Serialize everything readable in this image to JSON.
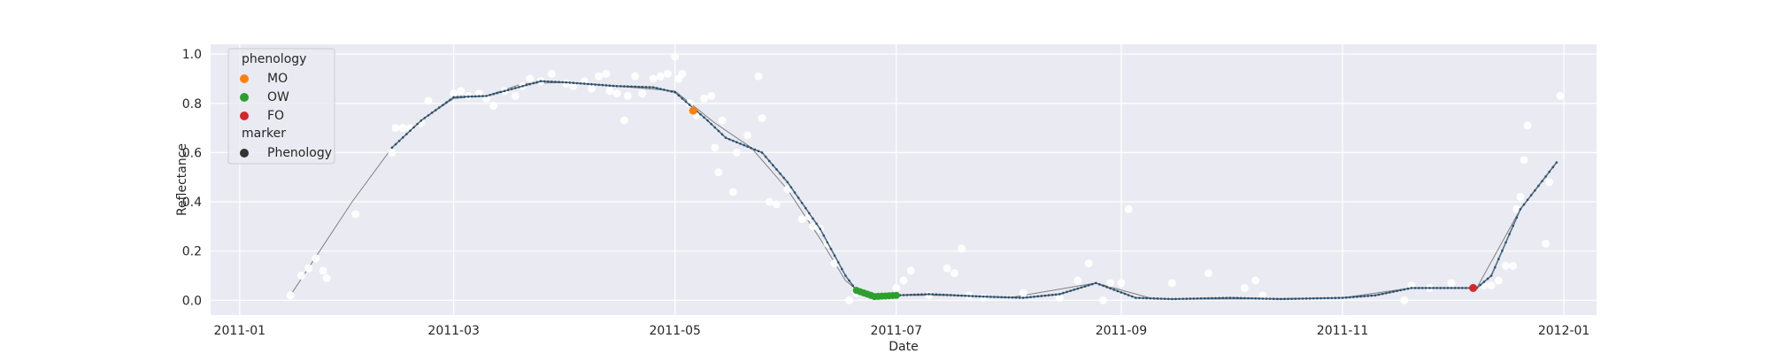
{
  "chart_data": {
    "type": "scatter",
    "xlabel": "Date",
    "ylabel": "Reflectance",
    "x_type": "date",
    "xlim": [
      "2010-12-24",
      "2012-01-10"
    ],
    "ylim": [
      -0.06,
      1.04
    ],
    "grid": true,
    "x_ticks": [
      {
        "value": "2011-01-01",
        "label": "2011-01"
      },
      {
        "value": "2011-03-01",
        "label": "2011-03"
      },
      {
        "value": "2011-05-01",
        "label": "2011-05"
      },
      {
        "value": "2011-07-01",
        "label": "2011-07"
      },
      {
        "value": "2011-09-01",
        "label": "2011-09"
      },
      {
        "value": "2011-11-01",
        "label": "2011-11"
      },
      {
        "value": "2012-01-01",
        "label": "2012-01"
      }
    ],
    "y_ticks": [
      {
        "value": 0.0,
        "label": "0.0"
      },
      {
        "value": 0.2,
        "label": "0.2"
      },
      {
        "value": 0.4,
        "label": "0.4"
      },
      {
        "value": 0.6,
        "label": "0.6"
      },
      {
        "value": 0.8,
        "label": "0.8"
      },
      {
        "value": 1.0,
        "label": "1.0"
      }
    ],
    "legend": {
      "placement": "top-left",
      "title_1": "phenology",
      "title_2": "marker",
      "entries": [
        {
          "label": "MO",
          "color": "#ff7f0e"
        },
        {
          "label": "OW",
          "color": "#2ca02c"
        },
        {
          "label": "FO",
          "color": "#d62728"
        }
      ],
      "marker_entry": {
        "label": "Phenology",
        "color": "#333333"
      }
    },
    "colors": {
      "background": "#eaeaf2",
      "grid": "#ffffff",
      "raw": "#ffffff",
      "fitted_line": "#808080",
      "smoothed": "#4c6f8a",
      "MO": "#ff7f0e",
      "OW": "#2ca02c",
      "FO": "#d62728"
    },
    "fitted_curve": [
      [
        "2011-01-15",
        0.02
      ],
      [
        "2011-02-01",
        0.4
      ],
      [
        "2011-02-12",
        0.62
      ],
      [
        "2011-02-20",
        0.73
      ],
      [
        "2011-03-01",
        0.82
      ],
      [
        "2011-03-10",
        0.83
      ],
      [
        "2011-03-20",
        0.88
      ],
      [
        "2011-04-01",
        0.885
      ],
      [
        "2011-04-15",
        0.87
      ],
      [
        "2011-05-01",
        0.85
      ],
      [
        "2011-05-12",
        0.72
      ],
      [
        "2011-05-22",
        0.62
      ],
      [
        "2011-06-01",
        0.45
      ],
      [
        "2011-06-10",
        0.25
      ],
      [
        "2011-06-17",
        0.08
      ],
      [
        "2011-06-22",
        0.02
      ],
      [
        "2011-07-01",
        0.02
      ],
      [
        "2011-07-15",
        0.02
      ],
      [
        "2011-08-01",
        0.01
      ],
      [
        "2011-08-25",
        0.07
      ],
      [
        "2011-09-10",
        0.005
      ],
      [
        "2011-10-01",
        0.005
      ],
      [
        "2011-11-01",
        0.01
      ],
      [
        "2011-11-20",
        0.05
      ],
      [
        "2011-12-08",
        0.05
      ],
      [
        "2011-12-20",
        0.37
      ],
      [
        "2011-12-30",
        0.56
      ]
    ],
    "smoothed_curve": [
      [
        "2011-02-12",
        0.62
      ],
      [
        "2011-02-20",
        0.73
      ],
      [
        "2011-03-01",
        0.825
      ],
      [
        "2011-03-10",
        0.83
      ],
      [
        "2011-03-15",
        0.85
      ],
      [
        "2011-03-25",
        0.89
      ],
      [
        "2011-04-01",
        0.885
      ],
      [
        "2011-04-15",
        0.87
      ],
      [
        "2011-04-25",
        0.865
      ],
      [
        "2011-05-01",
        0.845
      ],
      [
        "2011-05-10",
        0.73
      ],
      [
        "2011-05-15",
        0.66
      ],
      [
        "2011-05-25",
        0.6
      ],
      [
        "2011-06-01",
        0.48
      ],
      [
        "2011-06-10",
        0.29
      ],
      [
        "2011-06-17",
        0.1
      ],
      [
        "2011-06-20",
        0.04
      ],
      [
        "2011-06-25",
        0.015
      ],
      [
        "2011-07-01",
        0.02
      ],
      [
        "2011-07-10",
        0.025
      ],
      [
        "2011-07-25",
        0.015
      ],
      [
        "2011-08-05",
        0.01
      ],
      [
        "2011-08-15",
        0.025
      ],
      [
        "2011-08-25",
        0.07
      ],
      [
        "2011-09-05",
        0.01
      ],
      [
        "2011-09-15",
        0.005
      ],
      [
        "2011-10-01",
        0.01
      ],
      [
        "2011-10-15",
        0.005
      ],
      [
        "2011-11-01",
        0.01
      ],
      [
        "2011-11-10",
        0.02
      ],
      [
        "2011-11-20",
        0.05
      ],
      [
        "2011-12-08",
        0.05
      ],
      [
        "2011-12-12",
        0.1
      ],
      [
        "2011-12-20",
        0.37
      ],
      [
        "2011-12-30",
        0.56
      ]
    ],
    "phenology_points": [
      {
        "phase": "MO",
        "x": "2011-05-06",
        "y": 0.77
      },
      {
        "phase": "FO",
        "x": "2011-12-07",
        "y": 0.05
      }
    ],
    "ow_range": {
      "start": "2011-06-20",
      "end": "2011-07-01"
    },
    "raw_points": [
      [
        "2011-01-15",
        0.02
      ],
      [
        "2011-01-18",
        0.1
      ],
      [
        "2011-01-20",
        0.13
      ],
      [
        "2011-01-22",
        0.17
      ],
      [
        "2011-01-24",
        0.12
      ],
      [
        "2011-01-25",
        0.09
      ],
      [
        "2011-02-02",
        0.35
      ],
      [
        "2011-02-12",
        0.6
      ],
      [
        "2011-02-13",
        0.7
      ],
      [
        "2011-02-15",
        0.7
      ],
      [
        "2011-02-17",
        0.7
      ],
      [
        "2011-02-20",
        0.72
      ],
      [
        "2011-02-22",
        0.81
      ],
      [
        "2011-03-01",
        0.84
      ],
      [
        "2011-03-03",
        0.85
      ],
      [
        "2011-03-05",
        0.83
      ],
      [
        "2011-03-08",
        0.84
      ],
      [
        "2011-03-10",
        0.82
      ],
      [
        "2011-03-12",
        0.79
      ],
      [
        "2011-03-15",
        0.85
      ],
      [
        "2011-03-18",
        0.83
      ],
      [
        "2011-03-20",
        0.87
      ],
      [
        "2011-03-22",
        0.9
      ],
      [
        "2011-03-25",
        0.89
      ],
      [
        "2011-03-28",
        0.92
      ],
      [
        "2011-04-01",
        0.88
      ],
      [
        "2011-04-03",
        0.87
      ],
      [
        "2011-04-06",
        0.89
      ],
      [
        "2011-04-08",
        0.86
      ],
      [
        "2011-04-10",
        0.91
      ],
      [
        "2011-04-12",
        0.92
      ],
      [
        "2011-04-13",
        0.85
      ],
      [
        "2011-04-15",
        0.84
      ],
      [
        "2011-04-17",
        0.73
      ],
      [
        "2011-04-18",
        0.83
      ],
      [
        "2011-04-20",
        0.91
      ],
      [
        "2011-04-22",
        0.84
      ],
      [
        "2011-04-25",
        0.9
      ],
      [
        "2011-04-27",
        0.91
      ],
      [
        "2011-04-29",
        0.92
      ],
      [
        "2011-05-01",
        0.99
      ],
      [
        "2011-05-02",
        0.9
      ],
      [
        "2011-05-03",
        0.92
      ],
      [
        "2011-05-05",
        0.8
      ],
      [
        "2011-05-07",
        0.75
      ],
      [
        "2011-05-09",
        0.82
      ],
      [
        "2011-05-11",
        0.83
      ],
      [
        "2011-05-12",
        0.62
      ],
      [
        "2011-05-13",
        0.52
      ],
      [
        "2011-05-14",
        0.73
      ],
      [
        "2011-05-17",
        0.44
      ],
      [
        "2011-05-18",
        0.6
      ],
      [
        "2011-05-21",
        0.67
      ],
      [
        "2011-05-24",
        0.91
      ],
      [
        "2011-05-25",
        0.74
      ],
      [
        "2011-05-27",
        0.4
      ],
      [
        "2011-05-29",
        0.39
      ],
      [
        "2011-06-01",
        0.45
      ],
      [
        "2011-06-05",
        0.33
      ],
      [
        "2011-06-07",
        0.34
      ],
      [
        "2011-06-08",
        0.3
      ],
      [
        "2011-06-10",
        0.29
      ],
      [
        "2011-06-12",
        0.23
      ],
      [
        "2011-06-14",
        0.15
      ],
      [
        "2011-06-18",
        0.0
      ],
      [
        "2011-06-20",
        0.03
      ],
      [
        "2011-07-01",
        0.05
      ],
      [
        "2011-07-03",
        0.08
      ],
      [
        "2011-07-05",
        0.12
      ],
      [
        "2011-07-10",
        0.02
      ],
      [
        "2011-07-15",
        0.13
      ],
      [
        "2011-07-17",
        0.11
      ],
      [
        "2011-07-19",
        0.21
      ],
      [
        "2011-07-21",
        0.02
      ],
      [
        "2011-07-25",
        0.01
      ],
      [
        "2011-08-05",
        0.03
      ],
      [
        "2011-08-15",
        0.01
      ],
      [
        "2011-08-20",
        0.08
      ],
      [
        "2011-08-23",
        0.15
      ],
      [
        "2011-08-27",
        0.0
      ],
      [
        "2011-08-29",
        0.07
      ],
      [
        "2011-09-01",
        0.07
      ],
      [
        "2011-09-03",
        0.37
      ],
      [
        "2011-09-15",
        0.07
      ],
      [
        "2011-09-25",
        0.11
      ],
      [
        "2011-10-05",
        0.05
      ],
      [
        "2011-10-08",
        0.08
      ],
      [
        "2011-10-10",
        0.02
      ],
      [
        "2011-11-18",
        0.0
      ],
      [
        "2011-11-20",
        0.06
      ],
      [
        "2011-11-25",
        0.05
      ],
      [
        "2011-12-01",
        0.07
      ],
      [
        "2011-12-10",
        0.06
      ],
      [
        "2011-12-12",
        0.06
      ],
      [
        "2011-12-14",
        0.08
      ],
      [
        "2011-12-16",
        0.14
      ],
      [
        "2011-12-18",
        0.14
      ],
      [
        "2011-12-19",
        0.37
      ],
      [
        "2011-12-20",
        0.42
      ],
      [
        "2011-12-21",
        0.57
      ],
      [
        "2011-12-22",
        0.71
      ],
      [
        "2011-12-27",
        0.23
      ],
      [
        "2011-12-28",
        0.48
      ],
      [
        "2011-12-31",
        0.83
      ]
    ]
  }
}
